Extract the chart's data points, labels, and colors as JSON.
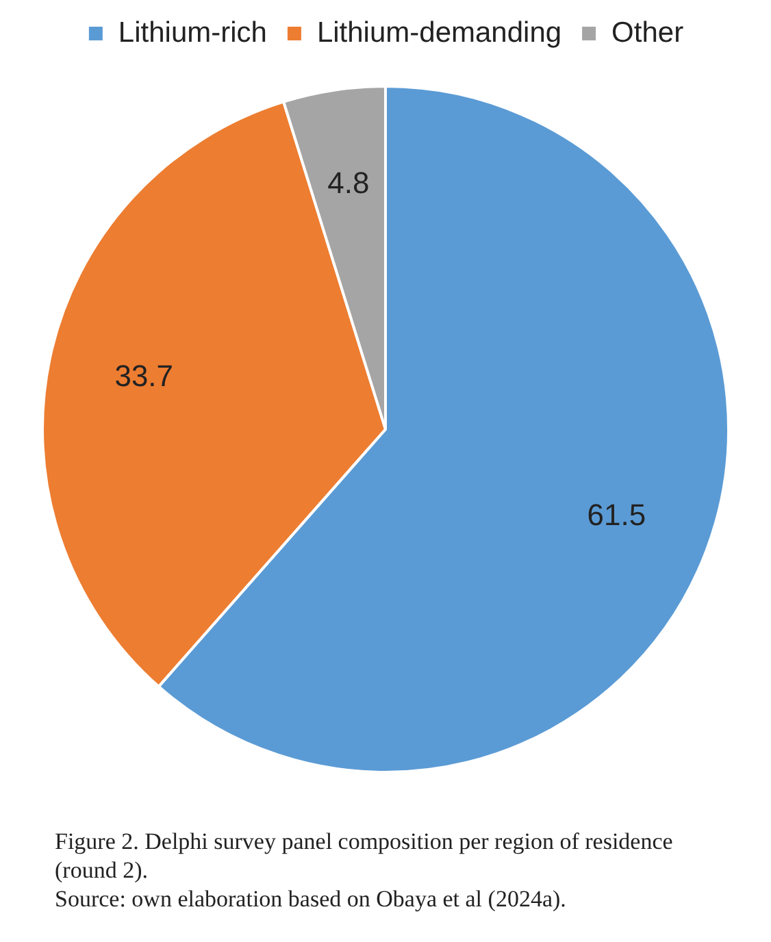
{
  "chart_data": {
    "type": "pie",
    "categories": [
      "Lithium-rich",
      "Lithium-demanding",
      "Other"
    ],
    "values": [
      61.5,
      33.7,
      4.8
    ],
    "colors": [
      "#5b9bd5",
      "#ed7d31",
      "#a5a5a5"
    ],
    "legend": "top",
    "data_labels": true,
    "annotations": [
      "Figure 2. Delphi survey panel composition per region of residence (round 2).",
      "Source: own elaboration based on Obaya et al (2024a)."
    ]
  }
}
